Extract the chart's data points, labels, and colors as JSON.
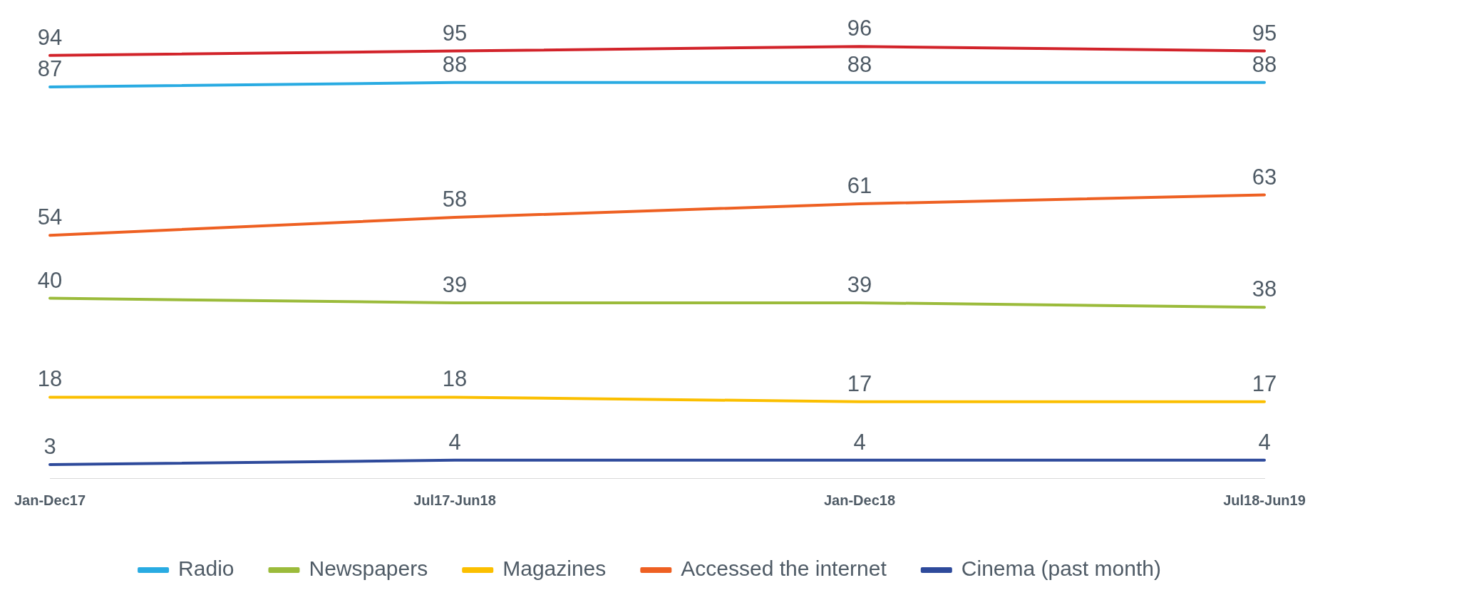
{
  "chart_data": {
    "type": "line",
    "categories": [
      "Jan-Dec17",
      "Jul17-Jun18",
      "Jan-Dec18",
      "Jul18-Jun19"
    ],
    "series": [
      {
        "color": "#d2232a",
        "values": [
          94,
          95,
          96,
          95
        ]
      },
      {
        "name": "Radio",
        "color": "#29abe2",
        "values": [
          87,
          88,
          88,
          88
        ]
      },
      {
        "name": "Accessed the internet",
        "color": "#ee6022",
        "values": [
          54,
          58,
          61,
          63
        ]
      },
      {
        "name": "Newspapers",
        "color": "#9bbb3b",
        "values": [
          40,
          39,
          39,
          38
        ]
      },
      {
        "name": "Magazines",
        "color": "#fbbf00",
        "values": [
          18,
          18,
          17,
          17
        ]
      },
      {
        "name": "Cinema (past month)",
        "color": "#2e4a9b",
        "values": [
          3,
          4,
          4,
          4
        ]
      }
    ],
    "data_labels": true,
    "legend": "bottom",
    "grid": false,
    "marker": "none",
    "line_style": "solid"
  }
}
